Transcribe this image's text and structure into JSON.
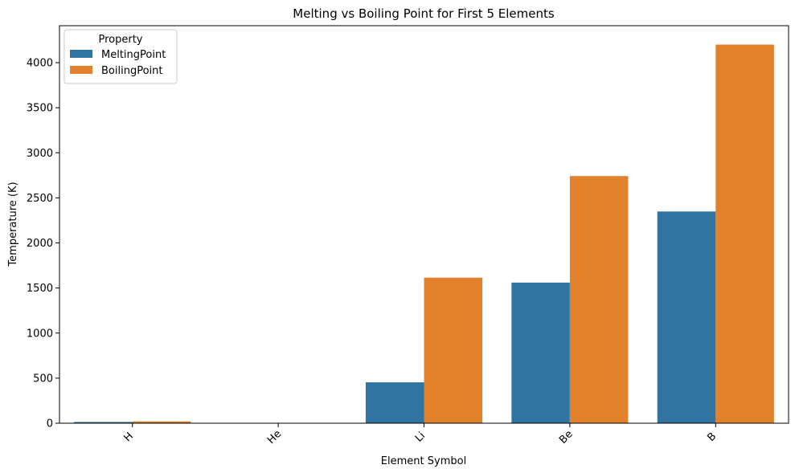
{
  "chart_data": {
    "type": "bar",
    "title": "Melting vs Boiling Point for First 5 Elements",
    "xlabel": "Element Symbol",
    "ylabel": "Temperature (K)",
    "categories": [
      "H",
      "He",
      "Li",
      "Be",
      "B"
    ],
    "series": [
      {
        "name": "MeltingPoint",
        "color": "#3274a1",
        "values": [
          14.01,
          0.95,
          453.69,
          1560,
          2349
        ]
      },
      {
        "name": "BoilingPoint",
        "color": "#e1812c",
        "values": [
          20.28,
          4.22,
          1615,
          2742,
          4200
        ]
      }
    ],
    "ylim": [
      0,
      4410
    ],
    "yticks": [
      0,
      500,
      1000,
      1500,
      2000,
      2500,
      3000,
      3500,
      4000
    ],
    "grid": false,
    "legend": {
      "title": "Property",
      "placement": "top-left"
    }
  }
}
